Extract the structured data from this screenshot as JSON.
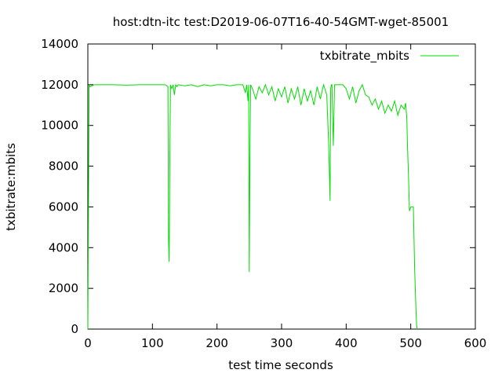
{
  "chart_data": {
    "type": "line",
    "title": "host:dtn-itc test:D2019-06-07T16-40-54GMT-wget-85001",
    "xlabel": "test time seconds",
    "ylabel": "txbitrate:mbits",
    "xlim": [
      0,
      600
    ],
    "ylim": [
      0,
      14000
    ],
    "xticks": [
      0,
      100,
      200,
      300,
      400,
      500,
      600
    ],
    "yticks": [
      0,
      2000,
      4000,
      6000,
      8000,
      10000,
      12000,
      14000
    ],
    "grid": false,
    "legend_position": "top-right",
    "series": [
      {
        "name": "txbitrate_mbits",
        "color": "#00dd00",
        "x": [
          0,
          1,
          2,
          3,
          10,
          20,
          40,
          60,
          80,
          100,
          120,
          124,
          125,
          126,
          127,
          128,
          130,
          132,
          134,
          136,
          138,
          140,
          150,
          160,
          170,
          180,
          190,
          200,
          210,
          220,
          230,
          240,
          244,
          246,
          248,
          249,
          250,
          251,
          252,
          255,
          260,
          265,
          270,
          275,
          280,
          285,
          290,
          295,
          300,
          305,
          310,
          315,
          320,
          325,
          330,
          335,
          340,
          345,
          350,
          355,
          360,
          365,
          370,
          373,
          375,
          376,
          377,
          378,
          380,
          382,
          383,
          384,
          386,
          390,
          395,
          400,
          405,
          410,
          415,
          420,
          425,
          430,
          435,
          440,
          445,
          450,
          455,
          460,
          465,
          470,
          475,
          480,
          485,
          490,
          492,
          494,
          495,
          496,
          497,
          498,
          500,
          502,
          504,
          505,
          506,
          507,
          508,
          509,
          510
        ],
        "y": [
          0,
          6000,
          12000,
          11900,
          12000,
          12000,
          12000,
          11980,
          12000,
          12000,
          12000,
          11900,
          4300,
          3300,
          9000,
          12000,
          11800,
          12000,
          11500,
          12000,
          11900,
          12000,
          11950,
          12000,
          11900,
          12000,
          11950,
          12000,
          12000,
          11950,
          12000,
          12000,
          11600,
          12000,
          11200,
          12000,
          2800,
          9000,
          12000,
          11800,
          11300,
          11900,
          11600,
          12000,
          11500,
          11900,
          11200,
          11800,
          11400,
          11900,
          11100,
          11800,
          11300,
          11900,
          11000,
          11800,
          11200,
          11700,
          11000,
          11900,
          11300,
          12000,
          11500,
          9000,
          6300,
          11800,
          12000,
          12000,
          9000,
          12000,
          12000,
          12000,
          12000,
          12000,
          12000,
          11800,
          11300,
          11900,
          11100,
          11700,
          12000,
          11500,
          11400,
          11000,
          11300,
          10800,
          11200,
          10600,
          11000,
          10700,
          11200,
          10500,
          11000,
          10800,
          11100,
          10300,
          9000,
          8000,
          7000,
          5800,
          6000,
          6000,
          6000,
          4500,
          3000,
          2000,
          1000,
          200,
          0
        ]
      }
    ]
  }
}
